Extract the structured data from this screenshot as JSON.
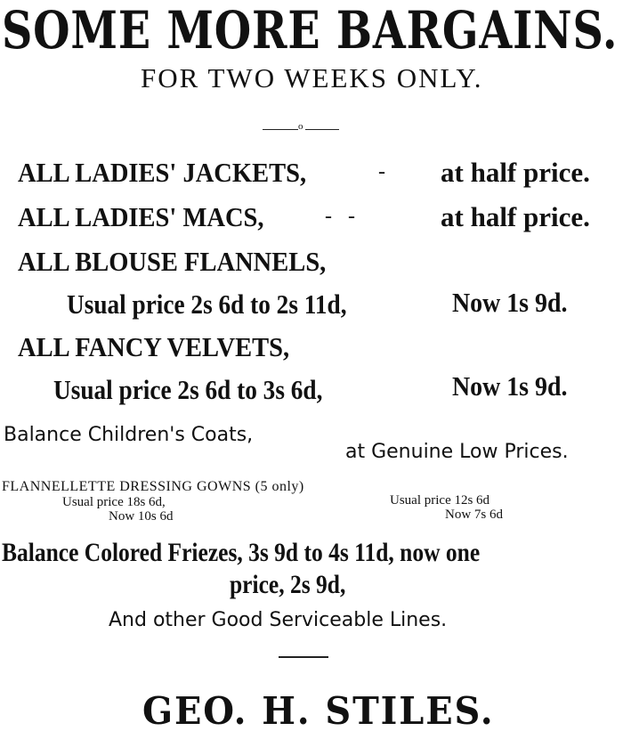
{
  "headline": "SOME MORE BARGAINS.",
  "subhead": "FOR TWO WEEKS ONLY.",
  "divider": "o",
  "items": [
    {
      "name": "ALL LADIES' JACKETS,",
      "dash": "-",
      "price": "at half price."
    },
    {
      "name": "ALL LADIES' MACS,",
      "dash": "-   -",
      "price": "at half price."
    },
    {
      "name": "ALL BLOUSE FLANNELS,",
      "usual": "Usual price 2s 6d to 2s 11d,",
      "price": "Now 1s 9d."
    },
    {
      "name": "ALL FANCY VELVETS,",
      "usual": "Usual price 2s 6d to 3s 6d,",
      "price": "Now 1s 9d."
    }
  ],
  "coats": {
    "name": "Balance Children's Coats,",
    "price": "at Genuine Low Prices."
  },
  "gowns": {
    "title": "FLANNELLETTE DRESSING GOWNS (5 only)",
    "left_usual": "Usual price 18s 6d,",
    "left_now": "Now 10s 6d",
    "right_usual": "Usual price 12s 6d",
    "right_now": "Now 7s 6d"
  },
  "friezes": {
    "line1": "Balance Colored Friezes, 3s 9d to 4s 11d, now one",
    "line2": "price, 2s 9d,"
  },
  "other": "And other Good Serviceable Lines.",
  "merchant": "GEO. H. STILES."
}
